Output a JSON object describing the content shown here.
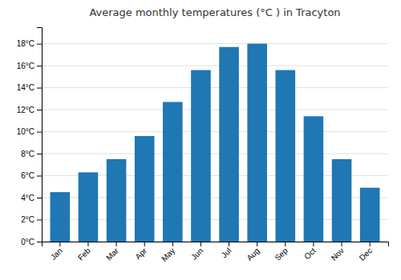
{
  "chart_data": {
    "type": "bar",
    "title": "Average monthly temperatures (°C ) in Tracyton",
    "categories": [
      "Jan",
      "Feb",
      "Mar",
      "Apr",
      "May",
      "Jun",
      "Jul",
      "Aug",
      "Sep",
      "Oct",
      "Nov",
      "Dec"
    ],
    "values": [
      4.5,
      6.3,
      7.5,
      9.6,
      12.7,
      15.6,
      17.7,
      18.0,
      15.6,
      11.4,
      7.5,
      4.9
    ],
    "ylim": [
      0,
      19.5
    ],
    "yticks": [
      {
        "value": 0,
        "label": "0°C"
      },
      {
        "value": 2,
        "label": "2°C"
      },
      {
        "value": 4,
        "label": "4°C"
      },
      {
        "value": 6,
        "label": "6°C"
      },
      {
        "value": 8,
        "label": "8°C"
      },
      {
        "value": 10,
        "label": "10°C"
      },
      {
        "value": 12,
        "label": "12°C"
      },
      {
        "value": 14,
        "label": "14°C"
      },
      {
        "value": 16,
        "label": "16°C"
      },
      {
        "value": 18,
        "label": "18°C"
      }
    ],
    "grid": true
  }
}
